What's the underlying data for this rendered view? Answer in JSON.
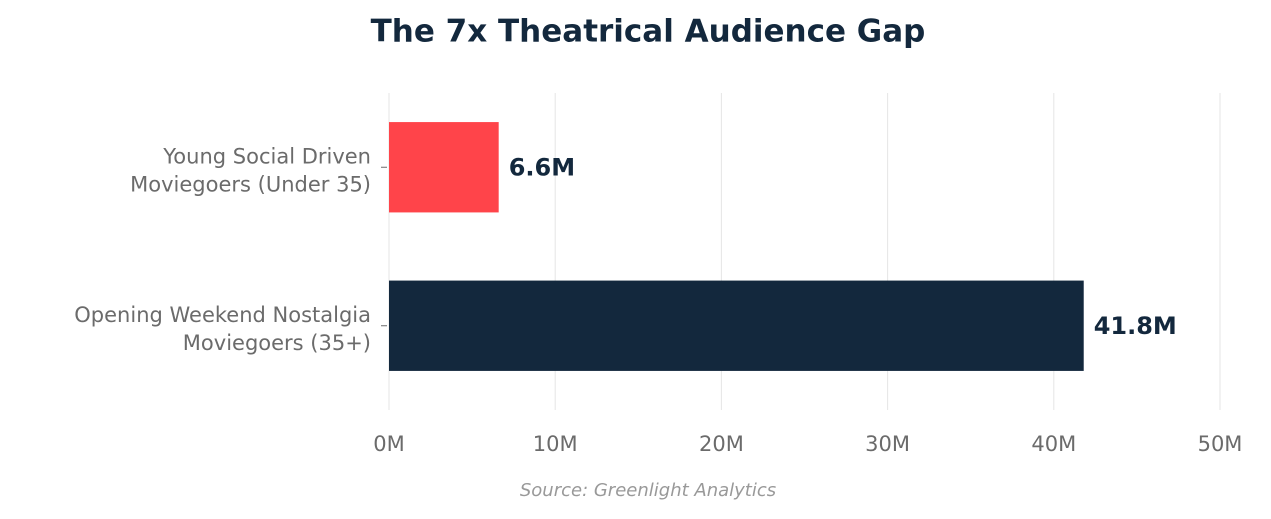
{
  "chart_data": {
    "type": "barh",
    "title": "The 7x Theatrical Audience Gap",
    "categories": [
      "Young Social Driven\nMoviegoers (Under 35)",
      "Opening Weekend Nostalgia\nMoviegoers (35+)"
    ],
    "values": [
      6.6,
      41.8
    ],
    "value_labels": [
      "6.6M",
      "41.8M"
    ],
    "colors": [
      "#ff444a",
      "#13283d"
    ],
    "xlim": [
      0,
      50
    ],
    "xticks": [
      {
        "value": 0,
        "label": "0M"
      },
      {
        "value": 10,
        "label": "10M"
      },
      {
        "value": 20,
        "label": "20M"
      },
      {
        "value": 30,
        "label": "30M"
      },
      {
        "value": 40,
        "label": "40M"
      },
      {
        "value": 50,
        "label": "50M"
      }
    ],
    "grid": true,
    "source": "Source: Greenlight Analytics"
  }
}
